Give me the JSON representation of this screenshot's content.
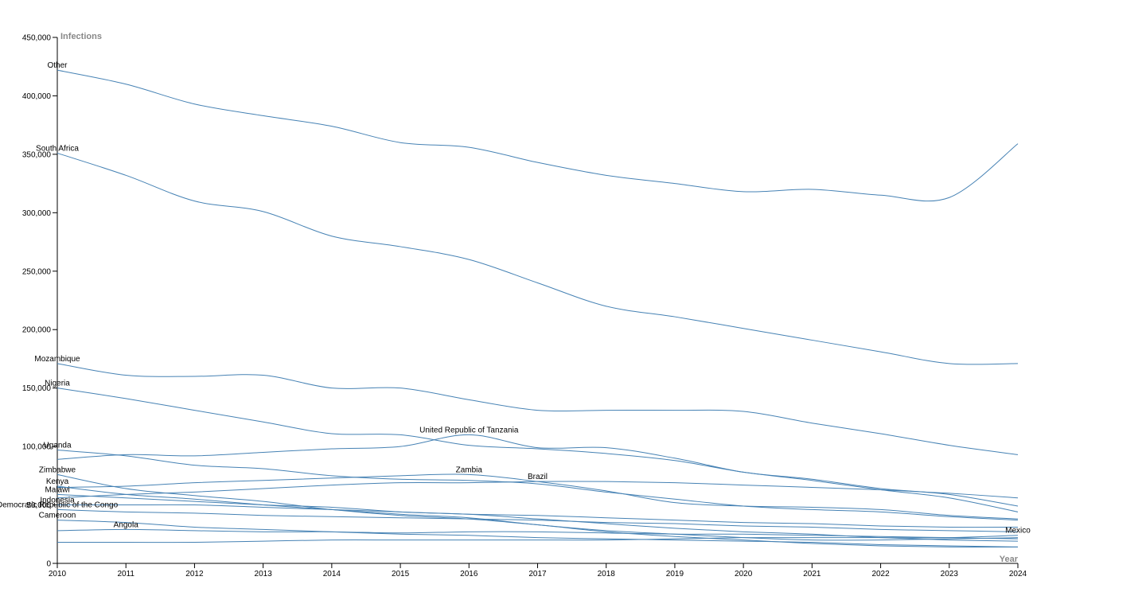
{
  "chart_data": {
    "type": "line",
    "color": "#4682b4",
    "y_label": "Infections",
    "x_label": "Year",
    "x": [
      2010,
      2011,
      2012,
      2013,
      2014,
      2015,
      2016,
      2017,
      2018,
      2019,
      2020,
      2021,
      2022,
      2023,
      2024
    ],
    "xlim": [
      2010,
      2024
    ],
    "xticks": [
      2010,
      2011,
      2012,
      2013,
      2014,
      2015,
      2016,
      2017,
      2018,
      2019,
      2020,
      2021,
      2022,
      2023,
      2024
    ],
    "ylim": [
      0,
      450000
    ],
    "yticks": [
      0,
      {
        "value": 50000,
        "label": "50,000"
      },
      {
        "value": 100000,
        "label": "100,000"
      },
      {
        "value": 150000,
        "label": "150,000"
      },
      {
        "value": 200000,
        "label": "200,000"
      },
      {
        "value": 250000,
        "label": "250,000"
      },
      {
        "value": 300000,
        "label": "300,000"
      },
      {
        "value": 350000,
        "label": "350,000"
      },
      {
        "value": 400000,
        "label": "400,000"
      },
      {
        "value": 450000,
        "label": "450,000"
      }
    ],
    "series": [
      {
        "name": "Other",
        "values": [
          422000,
          410000,
          393000,
          383000,
          374000,
          360000,
          356000,
          343000,
          332000,
          325000,
          318000,
          320000,
          315000,
          313000,
          359000
        ]
      },
      {
        "name": "South Africa",
        "values": [
          351000,
          332000,
          310000,
          301000,
          280000,
          271000,
          260000,
          240000,
          220000,
          211000,
          201000,
          191000,
          181000,
          171000,
          171000
        ]
      },
      {
        "name": "Mozambique",
        "values": [
          171000,
          161000,
          160000,
          161000,
          150000,
          150000,
          140000,
          131000,
          131000,
          131000,
          130000,
          120000,
          111000,
          101000,
          93000
        ]
      },
      {
        "name": "Nigeria",
        "values": [
          150000,
          141000,
          131000,
          121000,
          111000,
          110000,
          101000,
          98000,
          94000,
          88000,
          78000,
          71000,
          63000,
          56000,
          44000
        ]
      },
      {
        "name": "United Republic of Tanzania",
        "values": [
          89000,
          93000,
          92000,
          95000,
          98000,
          100000,
          110000,
          99000,
          99000,
          90000,
          78000,
          72000,
          64000,
          59000,
          49000
        ]
      },
      {
        "name": "Uganda",
        "values": [
          97000,
          92000,
          84000,
          81000,
          75000,
          72000,
          71000,
          68000,
          61000,
          55000,
          49000,
          46000,
          44000,
          40000,
          37000
        ]
      },
      {
        "name": "Zimbabwe",
        "values": [
          76000,
          64000,
          58000,
          53000,
          46000,
          41000,
          38000,
          33000,
          27000,
          23000,
          20000,
          17000,
          15000,
          14000,
          14000
        ]
      },
      {
        "name": "Kenya",
        "values": [
          66000,
          59000,
          55000,
          50000,
          46000,
          42000,
          39000,
          33000,
          28000,
          25000,
          22000,
          20000,
          20000,
          21000,
          22000
        ]
      },
      {
        "name": "Zambia",
        "values": [
          65000,
          66000,
          69000,
          71000,
          73000,
          75000,
          76000,
          70000,
          62000,
          52000,
          49000,
          48000,
          46000,
          41000,
          38000
        ]
      },
      {
        "name": "Brazil",
        "values": [
          56000,
          59000,
          61000,
          64000,
          67000,
          69000,
          69000,
          70000,
          70000,
          69000,
          67000,
          65000,
          63000,
          60000,
          56000
        ]
      },
      {
        "name": "Malawi",
        "values": [
          59000,
          56000,
          53000,
          50000,
          48000,
          44000,
          42000,
          38000,
          34000,
          30000,
          27000,
          25000,
          22000,
          20000,
          19000
        ]
      },
      {
        "name": "Indonesia",
        "values": [
          50000,
          50000,
          50000,
          48000,
          46000,
          44000,
          42000,
          41000,
          39000,
          37000,
          35000,
          34000,
          32000,
          31000,
          31000
        ]
      },
      {
        "name": "Democratic Republic of the Congo",
        "values": [
          46000,
          44000,
          43000,
          41000,
          40000,
          39000,
          38000,
          37000,
          35000,
          34000,
          32000,
          31000,
          29000,
          28000,
          27000
        ]
      },
      {
        "name": "Cameroon",
        "values": [
          37000,
          35000,
          31000,
          29000,
          27000,
          25000,
          24000,
          22000,
          21000,
          20000,
          19000,
          18000,
          16000,
          15000,
          14000
        ]
      },
      {
        "name": "Angola",
        "values": [
          28000,
          29000,
          28000,
          27000,
          27000,
          26000,
          27000,
          27000,
          26000,
          25000,
          25000,
          24000,
          23000,
          22000,
          21000
        ]
      },
      {
        "name": "Mexico",
        "values": [
          18000,
          18000,
          18000,
          19000,
          20000,
          20000,
          20000,
          20000,
          20000,
          21000,
          22000,
          22000,
          22000,
          22000,
          24000
        ]
      }
    ]
  }
}
